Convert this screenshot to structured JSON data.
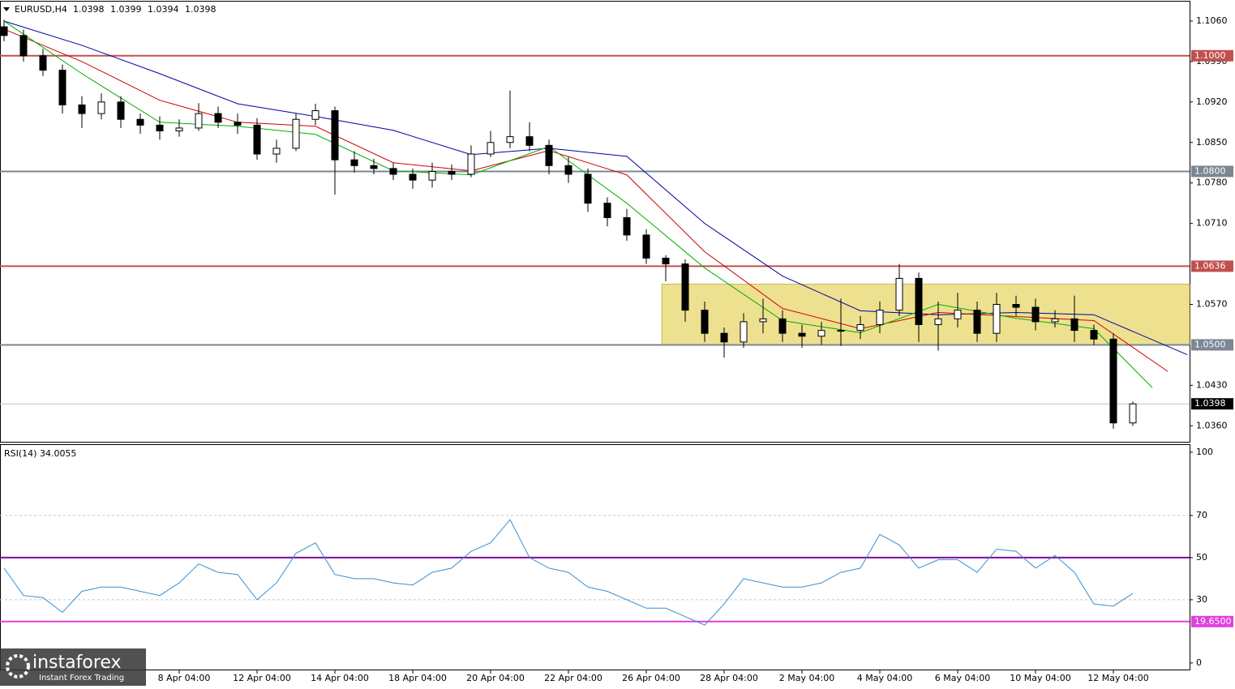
{
  "chart_data": [
    {
      "type": "candlestick",
      "title": "EURUSD,H4",
      "ohlc_labels": [
        "1.0398",
        "1.0399",
        "1.0394",
        "1.0398"
      ],
      "categories": [
        null,
        null,
        null,
        null,
        null,
        null,
        null,
        null,
        null,
        "8 Apr 04:00",
        null,
        null,
        null,
        "12 Apr 04:00",
        null,
        null,
        null,
        "14 Apr 04:00",
        null,
        null,
        null,
        "18 Apr 04:00",
        null,
        null,
        null,
        "20 Apr 04:00",
        null,
        null,
        null,
        "22 Apr 04:00",
        null,
        null,
        null,
        "26 Apr 04:00",
        null,
        null,
        null,
        "28 Apr 04:00",
        null,
        null,
        null,
        "2 May 04:00",
        null,
        null,
        null,
        "4 May 04:00",
        null,
        null,
        null,
        "6 May 04:00",
        null,
        null,
        null,
        "10 May 04:00",
        null,
        null,
        null,
        "12 May 04:00",
        null
      ],
      "open": [
        1.105,
        1.1035,
        1.1,
        1.0975,
        1.0915,
        1.09,
        1.092,
        1.089,
        1.088,
        1.087,
        1.0875,
        1.09,
        1.0885,
        1.088,
        1.083,
        1.084,
        1.089,
        1.0905,
        1.082,
        1.081,
        1.0805,
        1.0795,
        1.0785,
        1.08,
        1.0795,
        1.083,
        1.085,
        1.086,
        1.0845,
        1.081,
        1.0795,
        1.0745,
        1.072,
        1.069,
        1.065,
        1.064,
        1.056,
        1.052,
        1.0505,
        1.054,
        1.0545,
        1.052,
        1.0515,
        1.0525,
        1.0525,
        1.0535,
        1.056,
        1.0615,
        1.0535,
        1.0545,
        1.056,
        1.052,
        1.057,
        1.0565,
        1.054,
        1.0545,
        1.0525,
        1.051,
        1.0365
      ],
      "high": [
        1.1062,
        1.1045,
        1.1012,
        1.0985,
        1.093,
        1.0935,
        1.093,
        1.09,
        1.0895,
        1.089,
        1.0918,
        1.0912,
        1.09,
        1.0892,
        1.0855,
        1.09,
        1.0917,
        1.0912,
        1.0835,
        1.0822,
        1.0815,
        1.0805,
        1.0815,
        1.0812,
        1.0845,
        1.087,
        1.094,
        1.0885,
        1.0855,
        1.0825,
        1.0805,
        1.0755,
        1.0735,
        1.07,
        1.0655,
        1.0648,
        1.0575,
        1.053,
        1.0555,
        1.058,
        1.056,
        1.0535,
        1.054,
        1.058,
        1.055,
        1.0575,
        1.064,
        1.0625,
        1.0575,
        1.059,
        1.0575,
        1.059,
        1.0585,
        1.058,
        1.056,
        1.0585,
        1.0535,
        1.052,
        1.0402
      ],
      "low": [
        1.1025,
        1.099,
        1.0965,
        1.09,
        1.0875,
        1.089,
        1.0875,
        1.0865,
        1.0855,
        1.086,
        1.087,
        1.0875,
        1.0865,
        1.082,
        1.0815,
        1.0835,
        1.088,
        1.076,
        1.0798,
        1.0795,
        1.0785,
        1.077,
        1.0772,
        1.0785,
        1.079,
        1.0825,
        1.084,
        1.0835,
        1.0795,
        1.078,
        1.073,
        1.0705,
        1.068,
        1.064,
        1.061,
        1.054,
        1.0505,
        1.0478,
        1.0495,
        1.052,
        1.0505,
        1.0495,
        1.05,
        1.0498,
        1.051,
        1.052,
        1.055,
        1.0505,
        1.049,
        1.053,
        1.0505,
        1.0505,
        1.055,
        1.0525,
        1.053,
        1.0505,
        1.05,
        1.0355,
        1.036
      ],
      "close": [
        1.1035,
        1.1,
        1.0975,
        1.0915,
        1.09,
        1.092,
        1.089,
        1.088,
        1.087,
        1.0875,
        1.09,
        1.0885,
        1.088,
        1.083,
        1.084,
        1.089,
        1.0905,
        1.082,
        1.081,
        1.0805,
        1.0795,
        1.0785,
        1.08,
        1.0795,
        1.083,
        1.085,
        1.086,
        1.0845,
        1.081,
        1.0795,
        1.0745,
        1.072,
        1.069,
        1.065,
        1.064,
        1.056,
        1.052,
        1.0505,
        1.054,
        1.0545,
        1.052,
        1.0515,
        1.0525,
        1.0525,
        1.0535,
        1.056,
        1.0615,
        1.0535,
        1.0545,
        1.056,
        1.052,
        1.057,
        1.0565,
        1.054,
        1.0545,
        1.0525,
        1.051,
        1.0365,
        1.0398
      ],
      "ylim": [
        1.0331,
        1.1095
      ],
      "yticks": [
        {
          "value": 1.106,
          "label": "1.1060"
        },
        {
          "value": 1.099,
          "label": "1.0990"
        },
        {
          "value": 1.092,
          "label": "1.0920"
        },
        {
          "value": 1.085,
          "label": "1.0850"
        },
        {
          "value": 1.078,
          "label": "1.0780"
        },
        {
          "value": 1.071,
          "label": "1.0710"
        },
        {
          "value": 1.057,
          "label": "1.0570"
        },
        {
          "value": 1.043,
          "label": "1.0430"
        },
        {
          "value": 1.036,
          "label": "1.0360"
        }
      ],
      "moving_averages": [
        {
          "color": "#0000a0",
          "x": [
            0,
            4,
            8,
            12,
            16,
            20,
            24,
            28,
            32,
            36,
            40,
            44,
            48,
            52,
            56,
            60.8
          ],
          "values": [
            1.106,
            1.1018,
            1.0969,
            1.0917,
            1.0895,
            1.0871,
            1.0829,
            1.084,
            1.0826,
            1.071,
            1.0619,
            1.0559,
            1.0552,
            1.0556,
            1.0552,
            1.0483
          ]
        },
        {
          "color": "#d00000",
          "x": [
            0,
            4,
            8,
            12,
            16,
            20,
            24,
            28,
            32,
            36,
            40,
            44,
            48,
            52,
            56,
            59.8
          ],
          "values": [
            1.1046,
            1.099,
            1.0923,
            1.0885,
            1.0878,
            1.0815,
            1.0801,
            1.0836,
            1.0794,
            1.0661,
            1.0563,
            1.0528,
            1.0556,
            1.0549,
            1.0542,
            1.0454
          ]
        },
        {
          "color": "#00b000",
          "x": [
            0,
            4,
            8,
            12,
            16,
            20,
            24,
            28,
            32,
            36,
            40,
            44,
            48,
            52,
            56,
            59
          ],
          "values": [
            1.106,
            1.0969,
            1.0885,
            1.0878,
            1.0864,
            1.0801,
            1.0794,
            1.0843,
            1.0745,
            1.0633,
            1.0542,
            1.0521,
            1.057,
            1.0546,
            1.0528,
            1.0426
          ]
        }
      ],
      "zone": {
        "from": 33.8,
        "top": 1.0605,
        "bottom": 1.05,
        "color": "#ede18f"
      },
      "levels": [
        {
          "value": 1.1,
          "label": "1.1000",
          "color": "#c0504d"
        },
        {
          "value": 1.08,
          "label": "1.0800",
          "color": "#7a8794"
        },
        {
          "value": 1.0636,
          "label": "1.0636",
          "color": "#c0504d"
        },
        {
          "value": 1.05,
          "label": "1.0500",
          "color": "#7a8794"
        }
      ],
      "current_price": {
        "value": 1.0398,
        "label": "1.0398"
      }
    },
    {
      "type": "line",
      "title": "RSI(14) 34.0055",
      "color": "#3a8fd0",
      "values": [
        45,
        32,
        31,
        24,
        34,
        36,
        36,
        34,
        32,
        38,
        47,
        43,
        42,
        30,
        38,
        52,
        57,
        42,
        40,
        40,
        38,
        37,
        43,
        45,
        53,
        57,
        68,
        50,
        45,
        43,
        36,
        34,
        30,
        26,
        26,
        22,
        18,
        28,
        40,
        38,
        36,
        36,
        38,
        43,
        45,
        61,
        56,
        45,
        49,
        49,
        43,
        54,
        53,
        45,
        51,
        43,
        28,
        27,
        33
      ],
      "ylim": [
        -3.5,
        103.8
      ],
      "yticks": [
        100,
        70,
        50,
        30,
        0
      ],
      "levels": [
        {
          "value": 70,
          "color": "#c8c8c8"
        },
        {
          "value": 50,
          "color": "#8000a0"
        },
        {
          "value": 30,
          "color": "#c8c8c8"
        },
        {
          "value": 19.65,
          "label": "19.6500",
          "color": "#e040e0"
        }
      ]
    }
  ],
  "logo": {
    "name": "instaforex",
    "tagline": "Instant Forex Trading"
  }
}
